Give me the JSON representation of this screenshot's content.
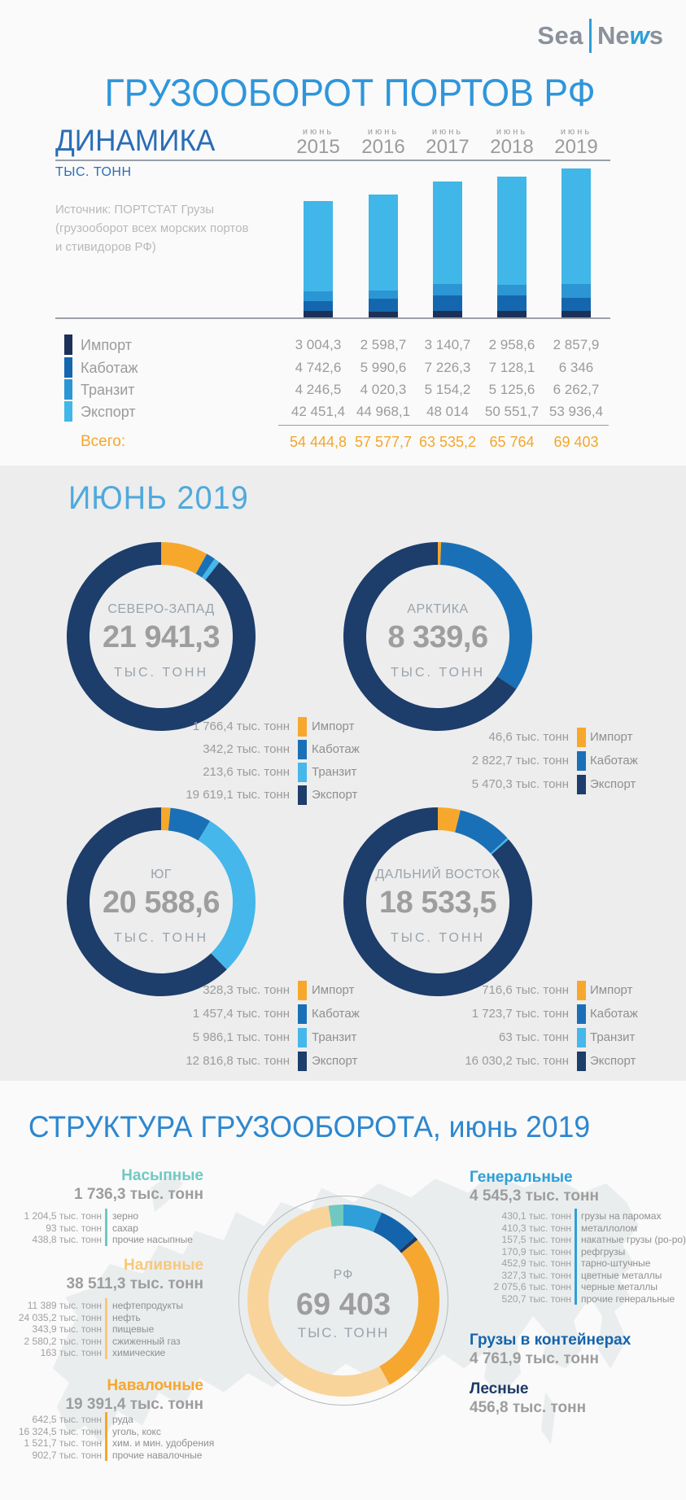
{
  "colors": {
    "import_bar": "#1c3058",
    "cabotage_bar": "#1467ae",
    "transit_bar": "#2b96d3",
    "export_bar": "#41b6e8",
    "import_donut": "#f7a82c",
    "cabotage_donut": "#1a70b7",
    "transit_donut": "#45b7ea",
    "export_donut": "#1d3d6b",
    "accent_orange": "#f5a62a",
    "title_blue": "#2e96db",
    "dark_blue": "#2a6db6",
    "light_heading_blue": "#4fa9dd",
    "bottom_heading_blue": "#2d87cf"
  },
  "logo": {
    "sea": "Sea",
    "news_pre": "Ne",
    "news_w": "w",
    "news_post": "s"
  },
  "title": "ГРУЗООБОРОТ ПОРТОВ РФ",
  "dynamics": {
    "heading": "ДИНАМИКА",
    "unit": "ТЫС. ТОНН",
    "month_label": "июнь",
    "total_label": "Всего:",
    "source_lines": [
      "Источник: ПОРТСТАТ Грузы",
      "(грузооборот всех морских портов",
      "и стивидоров РФ)"
    ]
  },
  "june": {
    "heading": "ИЮНЬ 2019"
  },
  "structure": {
    "heading": "СТРУКТУРА ГРУЗООБОРОТА, июнь 2019",
    "groups_left": [
      {
        "name": "Насыпные",
        "total": "1 736,3 тыс. тонн",
        "color": "#6fc9c1",
        "items": [
          [
            "1 204,5 тыс. тонн",
            "зерно"
          ],
          [
            "93 тыс. тонн",
            "сахар"
          ],
          [
            "438,8 тыс. тонн",
            "прочие насыпные"
          ]
        ]
      },
      {
        "name": "Наливные",
        "total": "38 511,3 тыс. тонн",
        "color": "#f8c878",
        "items": [
          [
            "11 389 тыс. тонн",
            "нефтепродукты"
          ],
          [
            "24 035,2 тыс. тонн",
            "нефть"
          ],
          [
            "343,9 тыс. тонн",
            "пищевые"
          ],
          [
            "2 580,2 тыс. тонн",
            "сжиженный газ"
          ],
          [
            "163 тыс. тонн",
            "химические"
          ]
        ]
      },
      {
        "name": "Навалочные",
        "total": "19 391,4 тыс. тонн",
        "color": "#f7a62e",
        "items": [
          [
            "642,5 тыс. тонн",
            "руда"
          ],
          [
            "16 324,5 тыс. тонн",
            "уголь, кокс"
          ],
          [
            "1 521,7 тыс. тонн",
            "хим. и мин. удобрения"
          ],
          [
            "902,7 тыс. тонн",
            "прочие навалочные"
          ]
        ]
      }
    ],
    "groups_right": [
      {
        "name": "Генеральные",
        "total": "4 545,3 тыс. тонн",
        "color": "#2e9fd8",
        "items": [
          [
            "430,1 тыс. тонн",
            "грузы на паромах"
          ],
          [
            "410,3 тыс. тонн",
            "металлолом"
          ],
          [
            "157,5 тыс. тонн",
            "накатные грузы (ро-ро)"
          ],
          [
            "170,9 тыс. тонн",
            "рефгрузы"
          ],
          [
            "452,9 тыс. тонн",
            "тарно-штучные"
          ],
          [
            "327,3 тыс. тонн",
            "цветные металлы"
          ],
          [
            "2 075,6 тыс. тонн",
            "черные металлы"
          ],
          [
            "520,7 тыс. тонн",
            "прочие генеральные"
          ]
        ]
      },
      {
        "name": "Грузы в контейнерах",
        "total": "4 761,9 тыс. тонн",
        "color": "#1464ab",
        "items": []
      },
      {
        "name": "Лесные",
        "total": "456,8 тыс. тонн",
        "color": "#1c3a66",
        "items": []
      }
    ]
  },
  "chart_data": [
    {
      "type": "bar",
      "stacked": true,
      "title": "ДИНАМИКА",
      "ylabel": "тыс. тонн",
      "categories": [
        "июнь 2015",
        "июнь 2016",
        "июнь 2017",
        "июнь 2018",
        "июнь 2019"
      ],
      "year_labels": [
        "2015",
        "2016",
        "2017",
        "2018",
        "2019"
      ],
      "series": [
        {
          "name": "Импорт",
          "color_key": "import_bar",
          "values": [
            3004.3,
            2598.7,
            3140.7,
            2958.6,
            2857.9
          ],
          "labels": [
            "3 004,3",
            "2 598,7",
            "3 140,7",
            "2 958,6",
            "2 857,9"
          ]
        },
        {
          "name": "Каботаж",
          "color_key": "cabotage_bar",
          "values": [
            4742.6,
            5990.6,
            7226.3,
            7128.1,
            6346
          ],
          "labels": [
            "4 742,6",
            "5 990,6",
            "7 226,3",
            "7 128,1",
            "6 346"
          ]
        },
        {
          "name": "Транзит",
          "color_key": "transit_bar",
          "values": [
            4246.5,
            4020.3,
            5154.2,
            5125.6,
            6262.7
          ],
          "labels": [
            "4 246,5",
            "4 020,3",
            "5 154,2",
            "5 125,6",
            "6 262,7"
          ]
        },
        {
          "name": "Экспорт",
          "color_key": "export_bar",
          "values": [
            42451.4,
            44968.1,
            48014,
            50551.7,
            53936.4
          ],
          "labels": [
            "42 451,4",
            "44 968,1",
            "48 014",
            "50 551,7",
            "53 936,4"
          ]
        }
      ],
      "totals": {
        "values": [
          54444.8,
          57577.7,
          63535.2,
          65764,
          69403
        ],
        "labels": [
          "54 444,8",
          "57 577,7",
          "63 535,2",
          "65 764",
          "69 403"
        ]
      }
    },
    {
      "type": "donut",
      "title": "СЕВЕРО-ЗАПАД",
      "center_value": "21 941,3",
      "unit": "ТЫС. ТОНН",
      "total": 21941.3,
      "slices": [
        {
          "label": "Импорт",
          "value": 1766.4,
          "display": "1 766,4 тыс. тонн",
          "color_key": "import_donut"
        },
        {
          "label": "Каботаж",
          "value": 342.2,
          "display": "342,2 тыс. тонн",
          "color_key": "cabotage_donut"
        },
        {
          "label": "Транзит",
          "value": 213.6,
          "display": "213,6 тыс. тонн",
          "color_key": "transit_donut"
        },
        {
          "label": "Экспорт",
          "value": 19619.1,
          "display": "19 619,1 тыс. тонн",
          "color_key": "export_donut"
        }
      ]
    },
    {
      "type": "donut",
      "title": "АРКТИКА",
      "center_value": "8 339,6",
      "unit": "ТЫС. ТОНН",
      "total": 8339.6,
      "slices": [
        {
          "label": "Импорт",
          "value": 46.6,
          "display": "46,6 тыс. тонн",
          "color_key": "import_donut"
        },
        {
          "label": "Каботаж",
          "value": 2822.7,
          "display": "2 822,7 тыс. тонн",
          "color_key": "cabotage_donut"
        },
        {
          "label": "Экспорт",
          "value": 5470.3,
          "display": "5 470,3 тыс. тонн",
          "color_key": "export_donut"
        }
      ]
    },
    {
      "type": "donut",
      "title": "ЮГ",
      "center_value": "20 588,6",
      "unit": "ТЫС. ТОНН",
      "total": 20588.6,
      "slices": [
        {
          "label": "Импорт",
          "value": 328.3,
          "display": "328,3 тыс. тонн",
          "color_key": "import_donut"
        },
        {
          "label": "Каботаж",
          "value": 1457.4,
          "display": "1 457,4 тыс. тонн",
          "color_key": "cabotage_donut"
        },
        {
          "label": "Транзит",
          "value": 5986.1,
          "display": "5 986,1 тыс. тонн",
          "color_key": "transit_donut"
        },
        {
          "label": "Экспорт",
          "value": 12816.8,
          "display": "12 816,8 тыс. тонн",
          "color_key": "export_donut"
        }
      ]
    },
    {
      "type": "donut",
      "title": "ДАЛЬНИЙ ВОСТОК",
      "center_value": "18 533,5",
      "unit": "ТЫС. ТОНН",
      "total": 18533.5,
      "slices": [
        {
          "label": "Импорт",
          "value": 716.6,
          "display": "716,6 тыс. тонн",
          "color_key": "import_donut"
        },
        {
          "label": "Каботаж",
          "value": 1723.7,
          "display": "1 723,7 тыс. тонн",
          "color_key": "cabotage_donut"
        },
        {
          "label": "Транзит",
          "value": 63,
          "display": "63 тыс. тонн",
          "color_key": "transit_donut"
        },
        {
          "label": "Экспорт",
          "value": 16030.2,
          "display": "16 030,2 тыс. тонн",
          "color_key": "export_donut"
        }
      ]
    },
    {
      "type": "donut",
      "title": "РФ",
      "center_value": "69 403",
      "unit": "ТЫС. ТОНН",
      "total": 69403,
      "start_angle": -9,
      "slices": [
        {
          "label": "Насыпные",
          "value": 1736.3,
          "color": "#6fc9c1"
        },
        {
          "label": "Генеральные",
          "value": 4545.3,
          "color": "#2e9fd8"
        },
        {
          "label": "Грузы в контейнерах",
          "value": 4761.9,
          "color": "#1464ab"
        },
        {
          "label": "Лесные",
          "value": 456.8,
          "color": "#1c3a66"
        },
        {
          "label": "Навалочные",
          "value": 19391.4,
          "color": "#f6a72f"
        },
        {
          "label": "Наливные",
          "value": 38511.3,
          "color": "#f8d49b"
        }
      ]
    }
  ]
}
